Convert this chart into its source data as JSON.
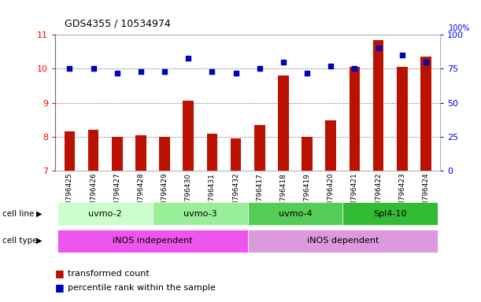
{
  "title": "GDS4355 / 10534974",
  "samples": [
    "GSM796425",
    "GSM796426",
    "GSM796427",
    "GSM796428",
    "GSM796429",
    "GSM796430",
    "GSM796431",
    "GSM796432",
    "GSM796417",
    "GSM796418",
    "GSM796419",
    "GSM796420",
    "GSM796421",
    "GSM796422",
    "GSM796423",
    "GSM796424"
  ],
  "transformed_count": [
    8.15,
    8.2,
    8.0,
    8.05,
    8.0,
    9.07,
    8.08,
    7.95,
    8.35,
    9.8,
    8.0,
    8.48,
    10.05,
    10.85,
    10.05,
    10.35
  ],
  "percentile_rank": [
    75,
    75,
    72,
    73,
    73,
    83,
    73,
    72,
    75,
    80,
    72,
    77,
    75,
    90,
    85,
    80
  ],
  "cell_lines": [
    {
      "label": "uvmo-2",
      "start": 0,
      "end": 3,
      "color": "#ccffcc"
    },
    {
      "label": "uvmo-3",
      "start": 4,
      "end": 7,
      "color": "#88ee88"
    },
    {
      "label": "uvmo-4",
      "start": 8,
      "end": 11,
      "color": "#55cc55"
    },
    {
      "label": "Spl4-10",
      "start": 12,
      "end": 15,
      "color": "#33bb33"
    }
  ],
  "cell_types": [
    {
      "label": "iNOS independent",
      "start": 0,
      "end": 7,
      "color": "#ee66ee"
    },
    {
      "label": "iNOS dependent",
      "start": 8,
      "end": 15,
      "color": "#dd88dd"
    }
  ],
  "ylim_left": [
    7,
    11
  ],
  "ylim_right": [
    0,
    100
  ],
  "bar_color": "#bb1100",
  "dot_color": "#0000bb",
  "bg_color": "#ffffff"
}
